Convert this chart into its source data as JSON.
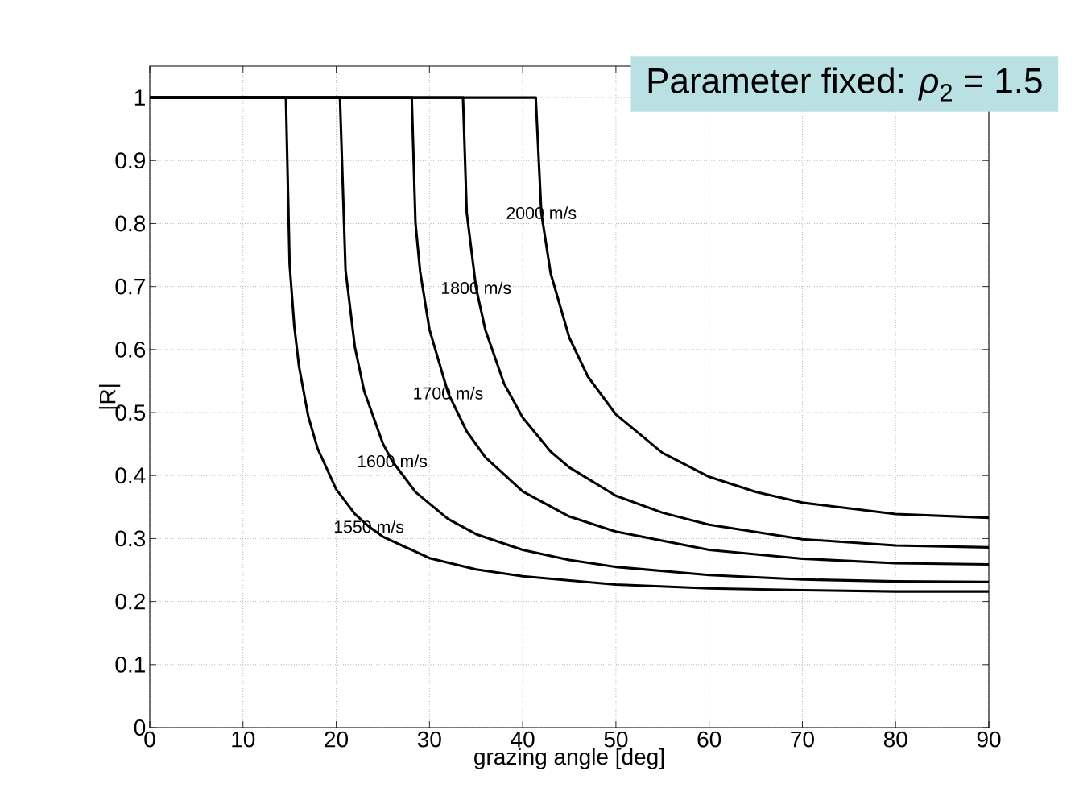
{
  "chart_data": {
    "type": "line",
    "title": "Parameter fixed: *ρ*$_{2}$ = 1.5",
    "xlabel": "grazing angle [deg]",
    "ylabel": "|R|",
    "xlim": [
      0,
      90
    ],
    "xticks": [
      0,
      10,
      20,
      30,
      40,
      50,
      60,
      70,
      80,
      90
    ],
    "ylim": [
      0,
      1.05
    ],
    "yticks": [
      0,
      0.1,
      0.2,
      0.3,
      0.4,
      0.5,
      0.6,
      0.7,
      0.8,
      0.9,
      1
    ],
    "grid": true,
    "marker": "none",
    "line_style": "solid",
    "series": [
      {
        "color": "#000000",
        "x": [
          0,
          14.6,
          15,
          15.5,
          16,
          17,
          18,
          20,
          22,
          23.5,
          25,
          30,
          35,
          40,
          50,
          60,
          70,
          80,
          90
        ],
        "values": [
          1,
          1,
          0.735,
          0.637,
          0.574,
          0.494,
          0.443,
          0.378,
          0.339,
          0.319,
          0.303,
          0.269,
          0.251,
          0.24,
          0.227,
          0.221,
          0.218,
          0.216,
          0.216
        ]
      },
      {
        "color": "#000000",
        "x": [
          0,
          20.4,
          21,
          22,
          23,
          25,
          26,
          28.5,
          32,
          35,
          40,
          45,
          50,
          60,
          70,
          80,
          90
        ],
        "values": [
          1,
          1,
          0.726,
          0.604,
          0.534,
          0.451,
          0.423,
          0.374,
          0.331,
          0.307,
          0.282,
          0.266,
          0.255,
          0.242,
          0.235,
          0.232,
          0.231
        ]
      },
      {
        "color": "#000000",
        "x": [
          0,
          28.1,
          28.5,
          29,
          30,
          32,
          34,
          36,
          40,
          45,
          50,
          60,
          70,
          80,
          90
        ],
        "values": [
          1,
          1,
          0.801,
          0.724,
          0.632,
          0.531,
          0.47,
          0.429,
          0.375,
          0.335,
          0.311,
          0.282,
          0.268,
          0.261,
          0.259
        ]
      },
      {
        "color": "#000000",
        "x": [
          0,
          33.6,
          34,
          35,
          36,
          38,
          40,
          43,
          45,
          50,
          55,
          60,
          70,
          80,
          90
        ],
        "values": [
          1,
          1,
          0.817,
          0.698,
          0.631,
          0.546,
          0.492,
          0.438,
          0.413,
          0.368,
          0.341,
          0.322,
          0.299,
          0.289,
          0.286
        ]
      },
      {
        "color": "#000000",
        "x": [
          0,
          41.4,
          42,
          43,
          45,
          47,
          50,
          55,
          60,
          65,
          70,
          80,
          90
        ],
        "values": [
          1,
          1,
          0.817,
          0.721,
          0.619,
          0.557,
          0.497,
          0.436,
          0.398,
          0.374,
          0.357,
          0.339,
          0.333
        ]
      }
    ],
    "annotations": [
      {
        "text": "2000 m/s",
        "x": 42,
        "y": 0.817
      },
      {
        "text": "1800 m/s",
        "x": 35,
        "y": 0.698
      },
      {
        "text": "1700 m/s",
        "x": 32,
        "y": 0.531
      },
      {
        "text": "1600 m/s",
        "x": 26,
        "y": 0.423
      },
      {
        "text": "1550 m/s",
        "x": 23.5,
        "y": 0.319
      }
    ]
  }
}
